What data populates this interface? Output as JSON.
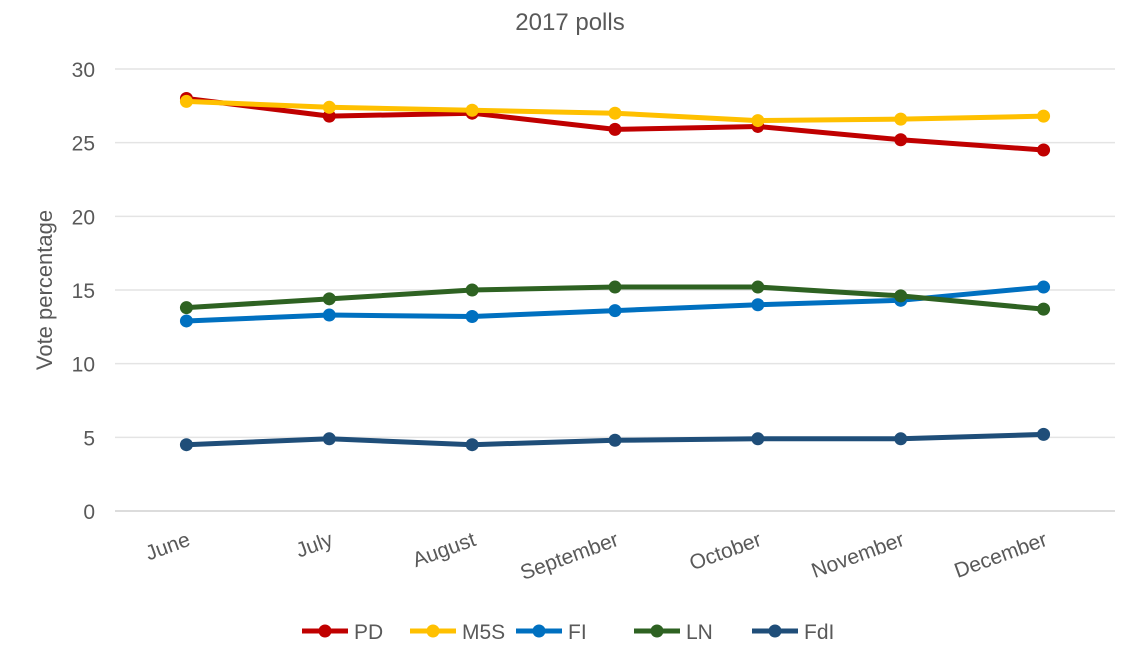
{
  "chart_data": {
    "type": "line",
    "title": "2017 polls",
    "xlabel": "",
    "ylabel": "Vote percentage",
    "ylim": [
      0,
      30
    ],
    "yticks": [
      0,
      5,
      10,
      15,
      20,
      25,
      30
    ],
    "grid": true,
    "legend_position": "bottom",
    "categories": [
      "June",
      "July",
      "August",
      "September",
      "October",
      "November",
      "December"
    ],
    "series": [
      {
        "name": "PD",
        "color": "#C00000",
        "values": [
          28.0,
          26.8,
          27.0,
          25.9,
          26.1,
          25.2,
          24.5
        ]
      },
      {
        "name": "M5S",
        "color": "#FFC000",
        "values": [
          27.8,
          27.4,
          27.2,
          27.0,
          26.5,
          26.6,
          26.8
        ]
      },
      {
        "name": "FI",
        "color": "#0070C0",
        "values": [
          12.9,
          13.3,
          13.2,
          13.6,
          14.0,
          14.3,
          15.2
        ]
      },
      {
        "name": "LN",
        "color": "#2E6222",
        "values": [
          13.8,
          14.4,
          15.0,
          15.2,
          15.2,
          14.6,
          13.7
        ]
      },
      {
        "name": "FdI",
        "color": "#1F4E79",
        "values": [
          4.5,
          4.9,
          4.5,
          4.8,
          4.9,
          4.9,
          5.2
        ]
      }
    ]
  }
}
